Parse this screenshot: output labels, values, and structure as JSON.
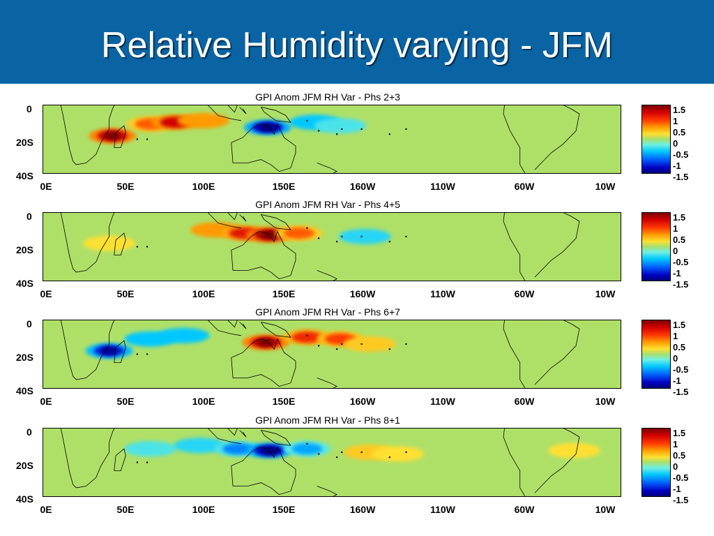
{
  "slide_title": "Relative Humidity varying - JFM",
  "colors": {
    "header": "#0a64a4",
    "background_field": "#aee068"
  },
  "chart_data": [
    {
      "type": "heatmap",
      "title": "GPI Anom JFM RH Var - Phs 2+3",
      "x_ticks": [
        "0E",
        "50E",
        "100E",
        "150E",
        "160W",
        "110W",
        "60W",
        "10W"
      ],
      "y_ticks": [
        "0",
        "20S",
        "40S"
      ],
      "colorbar_ticks": [
        "1.5",
        "1",
        "0.5",
        "0",
        "-0.5",
        "-1",
        "-1.5"
      ],
      "colorbar_range": [
        -1.5,
        1.5
      ],
      "anomalies": [
        {
          "lon": 42,
          "lat": -18,
          "value": 1.5
        },
        {
          "lon": 65,
          "lat": -11,
          "value": 0.8
        },
        {
          "lon": 80,
          "lat": -10,
          "value": 1.2
        },
        {
          "lon": 97,
          "lat": -9,
          "value": 0.6
        },
        {
          "lon": 136,
          "lat": -13,
          "value": -1.5
        },
        {
          "lon": 165,
          "lat": -10,
          "value": -0.6
        },
        {
          "lon": 180,
          "lat": -12,
          "value": -0.4
        }
      ]
    },
    {
      "type": "heatmap",
      "title": "GPI Anom JFM RH Var - Phs 4+5",
      "x_ticks": [
        "0E",
        "50E",
        "100E",
        "150E",
        "160W",
        "110W",
        "60W",
        "10W"
      ],
      "y_ticks": [
        "0",
        "20S",
        "40S"
      ],
      "colorbar_ticks": [
        "1.5",
        "1",
        "0.5",
        "0",
        "-0.5",
        "-1",
        "-1.5"
      ],
      "colorbar_range": [
        -1.5,
        1.5
      ],
      "anomalies": [
        {
          "lon": 40,
          "lat": -18,
          "value": 0.3
        },
        {
          "lon": 105,
          "lat": -10,
          "value": 0.6
        },
        {
          "lon": 122,
          "lat": -12,
          "value": 1.1
        },
        {
          "lon": 137,
          "lat": -13,
          "value": 1.6
        },
        {
          "lon": 155,
          "lat": -12,
          "value": 0.8
        },
        {
          "lon": 195,
          "lat": -14,
          "value": -0.5
        }
      ]
    },
    {
      "type": "heatmap",
      "title": "GPI Anom JFM RH Var - Phs 6+7",
      "x_ticks": [
        "0E",
        "50E",
        "100E",
        "150E",
        "160W",
        "110W",
        "60W",
        "10W"
      ],
      "y_ticks": [
        "0",
        "20S",
        "40S"
      ],
      "colorbar_ticks": [
        "1.5",
        "1",
        "0.5",
        "0",
        "-0.5",
        "-1",
        "-1.5"
      ],
      "colorbar_range": [
        -1.5,
        1.5
      ],
      "anomalies": [
        {
          "lon": 40,
          "lat": -18,
          "value": -1.4
        },
        {
          "lon": 65,
          "lat": -11,
          "value": -0.6
        },
        {
          "lon": 85,
          "lat": -9,
          "value": -0.6
        },
        {
          "lon": 135,
          "lat": -13,
          "value": 1.5
        },
        {
          "lon": 160,
          "lat": -10,
          "value": 1.0
        },
        {
          "lon": 180,
          "lat": -11,
          "value": 0.9
        },
        {
          "lon": 198,
          "lat": -14,
          "value": 0.4
        }
      ]
    },
    {
      "type": "heatmap",
      "title": "GPI Anom JFM RH Var - Phs 8+1",
      "x_ticks": [
        "0E",
        "50E",
        "100E",
        "150E",
        "160W",
        "110W",
        "60W",
        "10W"
      ],
      "y_ticks": [
        "0",
        "20S",
        "40S"
      ],
      "colorbar_ticks": [
        "1.5",
        "1",
        "0.5",
        "0",
        "-0.5",
        "-1",
        "-1.5"
      ],
      "colorbar_range": [
        -1.5,
        1.5
      ],
      "anomalies": [
        {
          "lon": 65,
          "lat": -12,
          "value": -0.4
        },
        {
          "lon": 95,
          "lat": -10,
          "value": -0.5
        },
        {
          "lon": 118,
          "lat": -12,
          "value": -0.8
        },
        {
          "lon": 137,
          "lat": -13,
          "value": -1.5
        },
        {
          "lon": 160,
          "lat": -12,
          "value": -0.7
        },
        {
          "lon": 198,
          "lat": -14,
          "value": 0.4
        },
        {
          "lon": 215,
          "lat": -15,
          "value": 0.3
        },
        {
          "lon": 322,
          "lat": -13,
          "value": 0.3
        }
      ]
    }
  ]
}
